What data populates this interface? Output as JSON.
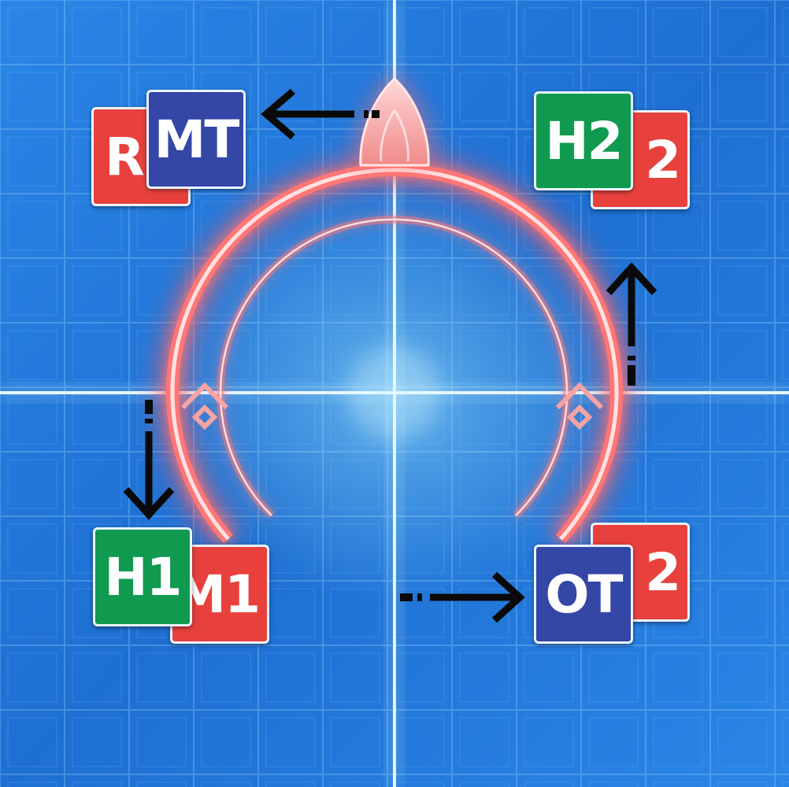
{
  "markers": {
    "top_left_back": "R",
    "top_left_front": "MT",
    "top_right_back": "2",
    "top_right_front": "H2",
    "bottom_left_back": "M1",
    "bottom_left_front": "H1",
    "bottom_right_back": "2",
    "bottom_right_front": "OT"
  },
  "colors": {
    "dps_red": "#e8413d",
    "tank_blue": "#3446a6",
    "healer_green": "#109a4f",
    "aoe_glow": "#ff6b6b",
    "arrow": "#0a0a0a"
  },
  "icons": {
    "boss_marker": "teardrop-icon",
    "arrows": [
      "arrow-left-icon",
      "arrow-up-icon",
      "arrow-down-icon",
      "arrow-right-icon"
    ]
  }
}
